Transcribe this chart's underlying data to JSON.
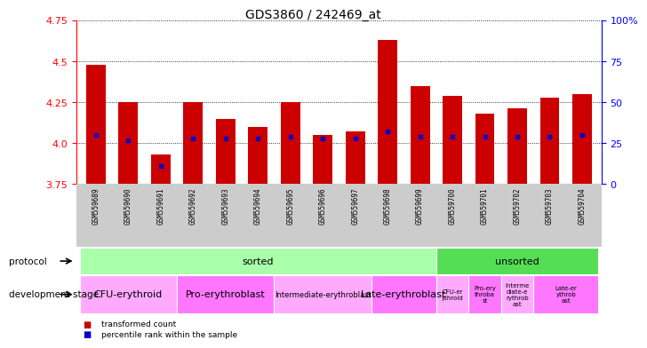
{
  "title": "GDS3860 / 242469_at",
  "samples": [
    "GSM559689",
    "GSM559690",
    "GSM559691",
    "GSM559692",
    "GSM559693",
    "GSM559694",
    "GSM559695",
    "GSM559696",
    "GSM559697",
    "GSM559698",
    "GSM559699",
    "GSM559700",
    "GSM559701",
    "GSM559702",
    "GSM559703",
    "GSM559704"
  ],
  "transformed_count": [
    4.48,
    4.25,
    3.93,
    4.25,
    4.15,
    4.1,
    4.25,
    4.05,
    4.07,
    4.63,
    4.35,
    4.29,
    4.18,
    4.21,
    4.28,
    4.3
  ],
  "percentile_rank_pct": [
    30,
    27,
    11,
    28,
    28,
    28,
    29,
    28,
    28,
    32,
    29,
    29,
    29,
    29,
    29,
    30
  ],
  "y_min": 3.75,
  "y_max": 4.75,
  "y_ticks": [
    3.75,
    4.0,
    4.25,
    4.5,
    4.75
  ],
  "right_y_ticks": [
    0,
    25,
    50,
    75,
    100
  ],
  "bar_color": "#cc0000",
  "dot_color": "#0000cc",
  "protocol_row": [
    {
      "label": "sorted",
      "start": 0,
      "end": 11,
      "color": "#aaffaa"
    },
    {
      "label": "unsorted",
      "start": 11,
      "end": 16,
      "color": "#55dd55"
    }
  ],
  "dev_stage_row": [
    {
      "label": "CFU-erythroid",
      "start": 0,
      "end": 3,
      "color": "#ffaaff",
      "fontsize": 8
    },
    {
      "label": "Pro-erythroblast",
      "start": 3,
      "end": 6,
      "color": "#ff77ff",
      "fontsize": 8
    },
    {
      "label": "Intermediate-erythroblast",
      "start": 6,
      "end": 9,
      "color": "#ffaaff",
      "fontsize": 6
    },
    {
      "label": "Late-erythroblast",
      "start": 9,
      "end": 11,
      "color": "#ff77ff",
      "fontsize": 8
    },
    {
      "label": "CFU-er\nythroid",
      "start": 11,
      "end": 12,
      "color": "#ffaaff",
      "fontsize": 5
    },
    {
      "label": "Pro-ery\nthroba\nst",
      "start": 12,
      "end": 13,
      "color": "#ff77ff",
      "fontsize": 5
    },
    {
      "label": "Interme\ndiate-e\nrythrob\nast",
      "start": 13,
      "end": 14,
      "color": "#ffaaff",
      "fontsize": 5
    },
    {
      "label": "Late-er\nythrob\nast",
      "start": 14,
      "end": 16,
      "color": "#ff77ff",
      "fontsize": 5
    }
  ],
  "protocol_label": "protocol",
  "dev_stage_label": "development stage"
}
